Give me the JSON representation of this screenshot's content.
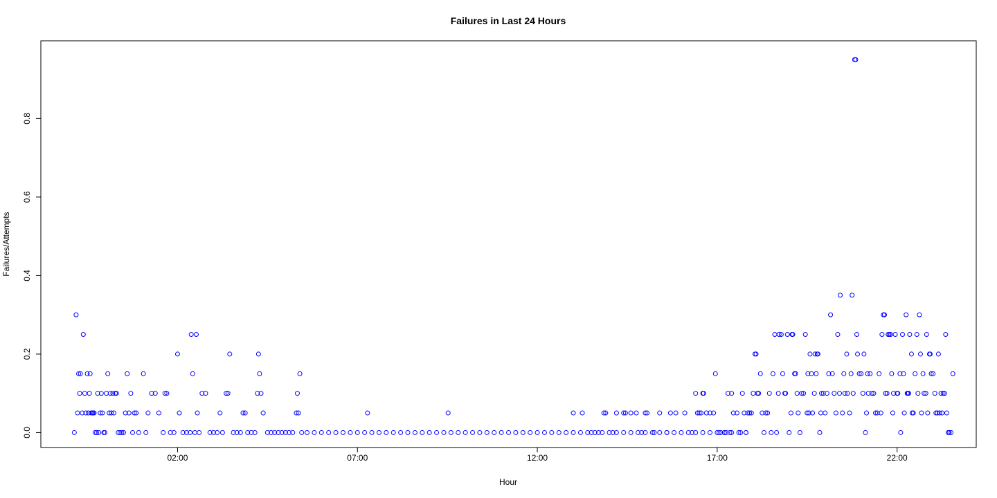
{
  "chart_data": {
    "type": "scatter",
    "title": "Failures in Last 24 Hours",
    "xlabel": "Hour",
    "ylabel": "Failures/Attempts",
    "x_unit": "hours",
    "x_ticks": [
      {
        "value": 2,
        "label": "02:00"
      },
      {
        "value": 7,
        "label": "07:00"
      },
      {
        "value": 12,
        "label": "12:00"
      },
      {
        "value": 17,
        "label": "17:00"
      },
      {
        "value": 22,
        "label": "22:00"
      }
    ],
    "y_ticks": [
      {
        "value": 0,
        "label": "0.0"
      },
      {
        "value": 0.2,
        "label": "0.2"
      },
      {
        "value": 0.4,
        "label": "0.4"
      },
      {
        "value": 0.6,
        "label": "0.6"
      },
      {
        "value": 0.8,
        "label": "0.8"
      }
    ],
    "xlim": [
      -1.8,
      24.2
    ],
    "ylim": [
      -0.038,
      0.998
    ],
    "grid": false,
    "legend": "none",
    "marker": {
      "shape": "open-circle",
      "color": "#0000ff"
    },
    "points": [
      [
        -0.87,
        0
      ],
      [
        -0.82,
        0.3
      ],
      [
        -0.78,
        0.05
      ],
      [
        -0.75,
        0.15
      ],
      [
        -0.72,
        0.1
      ],
      [
        -0.7,
        0.15
      ],
      [
        -0.65,
        0.05
      ],
      [
        -0.62,
        0.25
      ],
      [
        -0.58,
        0.1
      ],
      [
        -0.55,
        0.05
      ],
      [
        -0.51,
        0.15
      ],
      [
        -0.48,
        0.05
      ],
      [
        -0.45,
        0.1
      ],
      [
        -0.43,
        0.15
      ],
      [
        -0.4,
        0.05
      ],
      [
        -0.37,
        0.05
      ],
      [
        -0.35,
        0.05
      ],
      [
        -0.32,
        0.05
      ],
      [
        -0.29,
        0
      ],
      [
        -0.25,
        0
      ],
      [
        -0.22,
        0.1
      ],
      [
        -0.19,
        0
      ],
      [
        -0.15,
        0.05
      ],
      [
        -0.12,
        0.1
      ],
      [
        -0.09,
        0.05
      ],
      [
        -0.05,
        0
      ],
      [
        -0.02,
        0
      ],
      [
        0.02,
        0.1
      ],
      [
        0.06,
        0.15
      ],
      [
        0.1,
        0.05
      ],
      [
        0.13,
        0.1
      ],
      [
        0.16,
        0.05
      ],
      [
        0.2,
        0.1
      ],
      [
        0.23,
        0.05
      ],
      [
        0.27,
        0.1
      ],
      [
        0.3,
        0.1
      ],
      [
        0.35,
        0
      ],
      [
        0.4,
        0
      ],
      [
        0.45,
        0
      ],
      [
        0.5,
        0
      ],
      [
        0.55,
        0.05
      ],
      [
        0.6,
        0.15
      ],
      [
        0.65,
        0.05
      ],
      [
        0.7,
        0.1
      ],
      [
        0.75,
        0
      ],
      [
        0.8,
        0.05
      ],
      [
        0.85,
        0.05
      ],
      [
        0.92,
        0
      ],
      [
        1.05,
        0.15
      ],
      [
        1.12,
        0
      ],
      [
        1.18,
        0.05
      ],
      [
        1.28,
        0.1
      ],
      [
        1.38,
        0.1
      ],
      [
        1.48,
        0.05
      ],
      [
        1.6,
        0
      ],
      [
        1.65,
        0.1
      ],
      [
        1.7,
        0.1
      ],
      [
        1.8,
        0
      ],
      [
        1.9,
        0
      ],
      [
        2.0,
        0.2
      ],
      [
        2.05,
        0.05
      ],
      [
        2.15,
        0
      ],
      [
        2.25,
        0
      ],
      [
        2.35,
        0
      ],
      [
        2.38,
        0.25
      ],
      [
        2.42,
        0.15
      ],
      [
        2.48,
        0
      ],
      [
        2.52,
        0.25
      ],
      [
        2.55,
        0.05
      ],
      [
        2.6,
        0
      ],
      [
        2.68,
        0.1
      ],
      [
        2.78,
        0.1
      ],
      [
        2.9,
        0
      ],
      [
        3.0,
        0
      ],
      [
        3.1,
        0
      ],
      [
        3.18,
        0.05
      ],
      [
        3.25,
        0
      ],
      [
        3.35,
        0.1
      ],
      [
        3.4,
        0.1
      ],
      [
        3.45,
        0.2
      ],
      [
        3.55,
        0
      ],
      [
        3.65,
        0
      ],
      [
        3.75,
        0
      ],
      [
        3.82,
        0.05
      ],
      [
        3.88,
        0.05
      ],
      [
        3.95,
        0
      ],
      [
        4.05,
        0
      ],
      [
        4.15,
        0
      ],
      [
        4.22,
        0.1
      ],
      [
        4.25,
        0.2
      ],
      [
        4.28,
        0.15
      ],
      [
        4.32,
        0.1
      ],
      [
        4.38,
        0.05
      ],
      [
        4.5,
        0
      ],
      [
        4.6,
        0
      ],
      [
        4.7,
        0
      ],
      [
        4.8,
        0
      ],
      [
        4.9,
        0
      ],
      [
        5.0,
        0
      ],
      [
        5.1,
        0
      ],
      [
        5.2,
        0
      ],
      [
        5.3,
        0.05
      ],
      [
        5.33,
        0.1
      ],
      [
        5.36,
        0.05
      ],
      [
        5.4,
        0.15
      ],
      [
        5.45,
        0
      ],
      [
        5.6,
        0
      ],
      [
        5.8,
        0
      ],
      [
        6.0,
        0
      ],
      [
        6.2,
        0
      ],
      [
        6.4,
        0
      ],
      [
        6.6,
        0
      ],
      [
        6.8,
        0
      ],
      [
        7.0,
        0
      ],
      [
        7.2,
        0
      ],
      [
        7.28,
        0.05
      ],
      [
        7.4,
        0
      ],
      [
        7.6,
        0
      ],
      [
        7.8,
        0
      ],
      [
        8.0,
        0
      ],
      [
        8.2,
        0
      ],
      [
        8.4,
        0
      ],
      [
        8.6,
        0
      ],
      [
        8.8,
        0
      ],
      [
        9.0,
        0
      ],
      [
        9.2,
        0
      ],
      [
        9.4,
        0
      ],
      [
        9.52,
        0.05
      ],
      [
        9.6,
        0
      ],
      [
        9.8,
        0
      ],
      [
        10.0,
        0
      ],
      [
        10.2,
        0
      ],
      [
        10.4,
        0
      ],
      [
        10.6,
        0
      ],
      [
        10.8,
        0
      ],
      [
        11.0,
        0
      ],
      [
        11.2,
        0
      ],
      [
        11.4,
        0
      ],
      [
        11.6,
        0
      ],
      [
        11.8,
        0
      ],
      [
        12.0,
        0
      ],
      [
        12.2,
        0
      ],
      [
        12.4,
        0
      ],
      [
        12.6,
        0
      ],
      [
        12.8,
        0
      ],
      [
        13.0,
        0
      ],
      [
        13.2,
        0
      ],
      [
        13.4,
        0
      ],
      [
        13.6,
        0
      ],
      [
        13.8,
        0
      ],
      [
        14.0,
        0
      ],
      [
        14.2,
        0
      ],
      [
        14.4,
        0
      ],
      [
        14.6,
        0
      ],
      [
        14.8,
        0
      ],
      [
        15.0,
        0
      ],
      [
        15.2,
        0
      ],
      [
        15.4,
        0
      ],
      [
        15.6,
        0
      ],
      [
        15.8,
        0
      ],
      [
        16.0,
        0
      ],
      [
        16.2,
        0
      ],
      [
        16.4,
        0
      ],
      [
        16.6,
        0
      ],
      [
        16.8,
        0
      ],
      [
        17.0,
        0
      ],
      [
        17.2,
        0
      ],
      [
        17.4,
        0
      ],
      [
        17.6,
        0
      ],
      [
        17.8,
        0
      ],
      [
        13.0,
        0.05
      ],
      [
        13.25,
        0.05
      ],
      [
        13.5,
        0
      ],
      [
        13.7,
        0
      ],
      [
        13.85,
        0.05
      ],
      [
        13.9,
        0.05
      ],
      [
        14.1,
        0
      ],
      [
        14.2,
        0.05
      ],
      [
        14.4,
        0.05
      ],
      [
        14.45,
        0.05
      ],
      [
        14.6,
        0.05
      ],
      [
        14.75,
        0.05
      ],
      [
        14.9,
        0
      ],
      [
        15.0,
        0.05
      ],
      [
        15.05,
        0.05
      ],
      [
        15.25,
        0
      ],
      [
        15.4,
        0.05
      ],
      [
        15.6,
        0
      ],
      [
        15.7,
        0.05
      ],
      [
        15.85,
        0.05
      ],
      [
        16.1,
        0.05
      ],
      [
        16.3,
        0
      ],
      [
        16.4,
        0.1
      ],
      [
        16.45,
        0.05
      ],
      [
        16.5,
        0.05
      ],
      [
        16.55,
        0.05
      ],
      [
        16.6,
        0.1
      ],
      [
        16.62,
        0.1
      ],
      [
        16.7,
        0.05
      ],
      [
        16.8,
        0.05
      ],
      [
        16.9,
        0.05
      ],
      [
        16.95,
        0.15
      ],
      [
        17.05,
        0
      ],
      [
        17.1,
        0
      ],
      [
        17.2,
        0
      ],
      [
        17.25,
        0
      ],
      [
        17.3,
        0.1
      ],
      [
        17.35,
        0
      ],
      [
        17.4,
        0.1
      ],
      [
        17.45,
        0.05
      ],
      [
        17.55,
        0.05
      ],
      [
        17.65,
        0
      ],
      [
        17.7,
        0.1
      ],
      [
        17.75,
        0.05
      ],
      [
        17.8,
        0
      ],
      [
        17.85,
        0.05
      ],
      [
        17.9,
        0.05
      ],
      [
        17.95,
        0.05
      ],
      [
        18.0,
        0.1
      ],
      [
        18.05,
        0.2
      ],
      [
        18.08,
        0.2
      ],
      [
        18.12,
        0.1
      ],
      [
        18.15,
        0.1
      ],
      [
        18.2,
        0.15
      ],
      [
        18.25,
        0.05
      ],
      [
        18.3,
        0
      ],
      [
        18.35,
        0.05
      ],
      [
        18.4,
        0.05
      ],
      [
        18.45,
        0.1
      ],
      [
        18.5,
        0
      ],
      [
        18.55,
        0.15
      ],
      [
        18.6,
        0.25
      ],
      [
        18.65,
        0
      ],
      [
        18.7,
        0.1
      ],
      [
        18.72,
        0.25
      ],
      [
        18.78,
        0.25
      ],
      [
        18.82,
        0.15
      ],
      [
        18.88,
        0.1
      ],
      [
        18.9,
        0.1
      ],
      [
        18.95,
        0.25
      ],
      [
        19.0,
        0
      ],
      [
        19.05,
        0.05
      ],
      [
        19.08,
        0.25
      ],
      [
        19.1,
        0.25
      ],
      [
        19.15,
        0.15
      ],
      [
        19.18,
        0.15
      ],
      [
        19.22,
        0.1
      ],
      [
        19.25,
        0.05
      ],
      [
        19.3,
        0
      ],
      [
        19.35,
        0.1
      ],
      [
        19.4,
        0.1
      ],
      [
        19.45,
        0.25
      ],
      [
        19.5,
        0.05
      ],
      [
        19.52,
        0.15
      ],
      [
        19.55,
        0.05
      ],
      [
        19.58,
        0.2
      ],
      [
        19.62,
        0.15
      ],
      [
        19.65,
        0.05
      ],
      [
        19.7,
        0.1
      ],
      [
        19.72,
        0.2
      ],
      [
        19.75,
        0.15
      ],
      [
        19.78,
        0.2
      ],
      [
        19.8,
        0.2
      ],
      [
        19.85,
        0
      ],
      [
        19.88,
        0.05
      ],
      [
        19.9,
        0.1
      ],
      [
        19.95,
        0.1
      ],
      [
        20.0,
        0.05
      ],
      [
        20.05,
        0.1
      ],
      [
        20.1,
        0.15
      ],
      [
        20.15,
        0.3
      ],
      [
        20.2,
        0.15
      ],
      [
        20.25,
        0.1
      ],
      [
        20.3,
        0.05
      ],
      [
        20.35,
        0.25
      ],
      [
        20.4,
        0.1
      ],
      [
        20.42,
        0.35
      ],
      [
        20.48,
        0.05
      ],
      [
        20.52,
        0.15
      ],
      [
        20.55,
        0.1
      ],
      [
        20.6,
        0.2
      ],
      [
        20.62,
        0.1
      ],
      [
        20.68,
        0.05
      ],
      [
        20.72,
        0.15
      ],
      [
        20.75,
        0.35
      ],
      [
        20.78,
        0.1
      ],
      [
        20.82,
        0.95
      ],
      [
        20.85,
        0.95
      ],
      [
        20.88,
        0.25
      ],
      [
        20.9,
        0.2
      ],
      [
        20.95,
        0.15
      ],
      [
        21.0,
        0.15
      ],
      [
        21.05,
        0.1
      ],
      [
        21.08,
        0.2
      ],
      [
        21.12,
        0
      ],
      [
        21.15,
        0.05
      ],
      [
        21.18,
        0.15
      ],
      [
        21.2,
        0.1
      ],
      [
        21.25,
        0.15
      ],
      [
        21.3,
        0.1
      ],
      [
        21.35,
        0.1
      ],
      [
        21.4,
        0.05
      ],
      [
        21.45,
        0.05
      ],
      [
        21.5,
        0.15
      ],
      [
        21.55,
        0.05
      ],
      [
        21.58,
        0.25
      ],
      [
        21.62,
        0.3
      ],
      [
        21.65,
        0.3
      ],
      [
        21.68,
        0.1
      ],
      [
        21.72,
        0.1
      ],
      [
        21.75,
        0.25
      ],
      [
        21.78,
        0.25
      ],
      [
        21.82,
        0.25
      ],
      [
        21.85,
        0.15
      ],
      [
        21.88,
        0.05
      ],
      [
        21.9,
        0.1
      ],
      [
        21.95,
        0.25
      ],
      [
        22.0,
        0.1
      ],
      [
        22.02,
        0.1
      ],
      [
        22.08,
        0.15
      ],
      [
        22.1,
        0
      ],
      [
        22.15,
        0.25
      ],
      [
        22.18,
        0.15
      ],
      [
        22.2,
        0.05
      ],
      [
        22.25,
        0.3
      ],
      [
        22.28,
        0.1
      ],
      [
        22.3,
        0.1
      ],
      [
        22.32,
        0.1
      ],
      [
        22.35,
        0.25
      ],
      [
        22.4,
        0.2
      ],
      [
        22.42,
        0.05
      ],
      [
        22.45,
        0.05
      ],
      [
        22.5,
        0.15
      ],
      [
        22.55,
        0.25
      ],
      [
        22.58,
        0.1
      ],
      [
        22.62,
        0.3
      ],
      [
        22.65,
        0.2
      ],
      [
        22.68,
        0.05
      ],
      [
        22.72,
        0.15
      ],
      [
        22.75,
        0.1
      ],
      [
        22.8,
        0.1
      ],
      [
        22.82,
        0.25
      ],
      [
        22.85,
        0.05
      ],
      [
        22.9,
        0.2
      ],
      [
        22.92,
        0.2
      ],
      [
        22.95,
        0.15
      ],
      [
        23.0,
        0.15
      ],
      [
        23.05,
        0.1
      ],
      [
        23.08,
        0.05
      ],
      [
        23.12,
        0.05
      ],
      [
        23.15,
        0.2
      ],
      [
        23.18,
        0.05
      ],
      [
        23.22,
        0.1
      ],
      [
        23.25,
        0.05
      ],
      [
        23.28,
        0.1
      ],
      [
        23.32,
        0.1
      ],
      [
        23.35,
        0.25
      ],
      [
        23.38,
        0.05
      ],
      [
        23.42,
        0
      ],
      [
        23.45,
        0
      ],
      [
        23.5,
        0
      ],
      [
        23.55,
        0.15
      ]
    ]
  }
}
